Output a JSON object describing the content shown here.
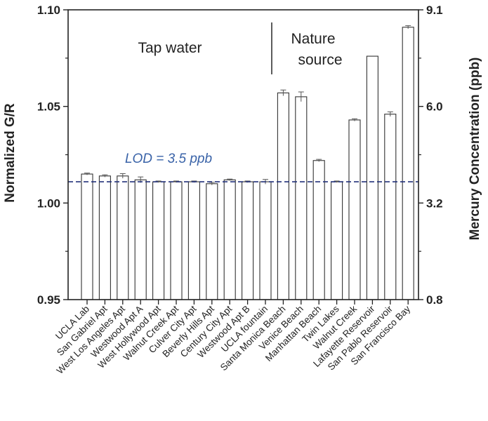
{
  "chart_data": {
    "type": "bar",
    "categories": [
      "UCLA Lab",
      "San Gabriel Apt",
      "West Los Angeles Apt",
      "Westwood Apt A",
      "West Hollywood Apt",
      "Walnut Creek Apt",
      "Culver City Apt",
      "Beverly Hills Apt",
      "Century City Apt",
      "Westwood Apt B",
      "UCLA fountain",
      "Santa Monica Beach",
      "Venice Beach",
      "Manhattan Beach",
      "Twin Lakes",
      "Walnut Creek",
      "Lafayette Reservoir",
      "San Pablo Reservoir",
      "San Francisco Bay"
    ],
    "values": [
      1.015,
      1.014,
      1.014,
      1.012,
      1.011,
      1.011,
      1.011,
      1.01,
      1.012,
      1.011,
      1.011,
      1.057,
      1.055,
      1.022,
      1.011,
      1.043,
      1.076,
      1.046,
      1.091
    ],
    "errors": [
      0.0005,
      0.0006,
      0.0012,
      0.0015,
      0.0004,
      0.0004,
      0.0004,
      0.0007,
      0.0004,
      0.0004,
      0.0012,
      0.0015,
      0.0025,
      0.0006,
      0.0004,
      0.0006,
      0.0,
      0.0012,
      0.0008
    ],
    "ylabel": "Normalized G/R",
    "y2label": "Mercury Concentration (ppb)",
    "ylim": [
      0.95,
      1.1
    ],
    "yticks": [
      "0.95",
      "1.00",
      "1.05",
      "1.10"
    ],
    "y2ticks": [
      "0.8",
      "3.2",
      "6.0",
      "9.1"
    ],
    "lod_value": 1.011,
    "lod_label": "LOD = 3.5 ppb",
    "group_labels": {
      "left": "Tap water",
      "right_line1": "Nature",
      "right_line2": "source"
    },
    "colors": {
      "bar_fill": "#ffffff",
      "bar_stroke": "#333333",
      "lod_line": "#23327a",
      "lod_text": "#3a63a8"
    }
  }
}
